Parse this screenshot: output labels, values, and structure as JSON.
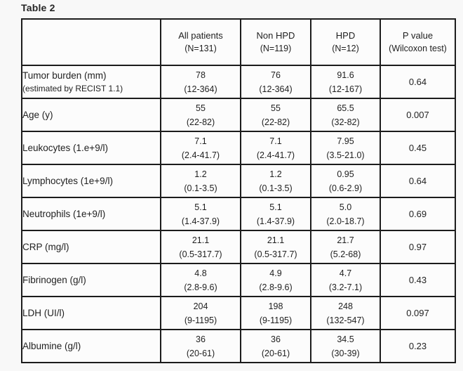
{
  "page": {
    "title": "Table 2"
  },
  "table": {
    "columns": [
      {
        "label": "All  patients",
        "n": "(N=131)"
      },
      {
        "label": "Non HPD",
        "n": "(N=119)"
      },
      {
        "label": "HPD",
        "n": "(N=12)"
      },
      {
        "label": "P value",
        "n": "(Wilcoxon test)"
      }
    ],
    "rows": [
      {
        "label": "Tumor burden (mm)",
        "sublabel": "(estimated by RECIST 1.1)",
        "all": {
          "median": "78",
          "range": "(12-364)"
        },
        "non_hpd": {
          "median": "76",
          "range": "(12-364)"
        },
        "hpd": {
          "median": "91.6",
          "range": "(12-167)"
        },
        "p": "0.64"
      },
      {
        "label": "Age (y)",
        "sublabel": "",
        "all": {
          "median": "55",
          "range": "(22-82)"
        },
        "non_hpd": {
          "median": "55",
          "range": "(22-82)"
        },
        "hpd": {
          "median": "65.5",
          "range": "(32-82)"
        },
        "p": "0.007"
      },
      {
        "label": "Leukocytes (1.e+9/l)",
        "sublabel": "",
        "all": {
          "median": "7.1",
          "range": "(2.4-41.7)"
        },
        "non_hpd": {
          "median": "7.1",
          "range": "(2.4-41.7)"
        },
        "hpd": {
          "median": "7.95",
          "range": "(3.5-21.0)"
        },
        "p": "0.45"
      },
      {
        "label": "Lymphocytes (1e+9/l)",
        "sublabel": "",
        "all": {
          "median": "1.2",
          "range": "(0.1-3.5)"
        },
        "non_hpd": {
          "median": "1.2",
          "range": "(0.1-3.5)"
        },
        "hpd": {
          "median": "0.95",
          "range": "(0.6-2.9)"
        },
        "p": "0.64"
      },
      {
        "label": "Neutrophils (1e+9/l)",
        "sublabel": "",
        "all": {
          "median": "5.1",
          "range": "(1.4-37.9)"
        },
        "non_hpd": {
          "median": "5.1",
          "range": "(1.4-37.9)"
        },
        "hpd": {
          "median": "5.0",
          "range": "(2.0-18.7)"
        },
        "p": "0.69"
      },
      {
        "label": "CRP (mg/l)",
        "sublabel": "",
        "all": {
          "median": "21.1",
          "range": "(0.5-317.7)"
        },
        "non_hpd": {
          "median": "21.1",
          "range": "(0.5-317.7)"
        },
        "hpd": {
          "median": "21.7",
          "range": "(5.2-68)"
        },
        "p": "0.97"
      },
      {
        "label": "Fibrinogen (g/l)",
        "sublabel": "",
        "all": {
          "median": "4.8",
          "range": "(2.8-9.6)"
        },
        "non_hpd": {
          "median": "4.9",
          "range": "(2.8-9.6)"
        },
        "hpd": {
          "median": "4.7",
          "range": "(3.2-7.1)"
        },
        "p": "0.43"
      },
      {
        "label": "LDH (UI/l)",
        "sublabel": "",
        "all": {
          "median": "204",
          "range": "(9-1195)"
        },
        "non_hpd": {
          "median": "198",
          "range": "(9-1195)"
        },
        "hpd": {
          "median": "248",
          "range": "(132-547)"
        },
        "p": "0.097"
      },
      {
        "label": "Albumine (g/l)",
        "sublabel": "",
        "all": {
          "median": "36",
          "range": "(20-61)"
        },
        "non_hpd": {
          "median": "36",
          "range": "(20-61)"
        },
        "hpd": {
          "median": "34.5",
          "range": "(30-39)"
        },
        "p": "0.23"
      }
    ]
  }
}
